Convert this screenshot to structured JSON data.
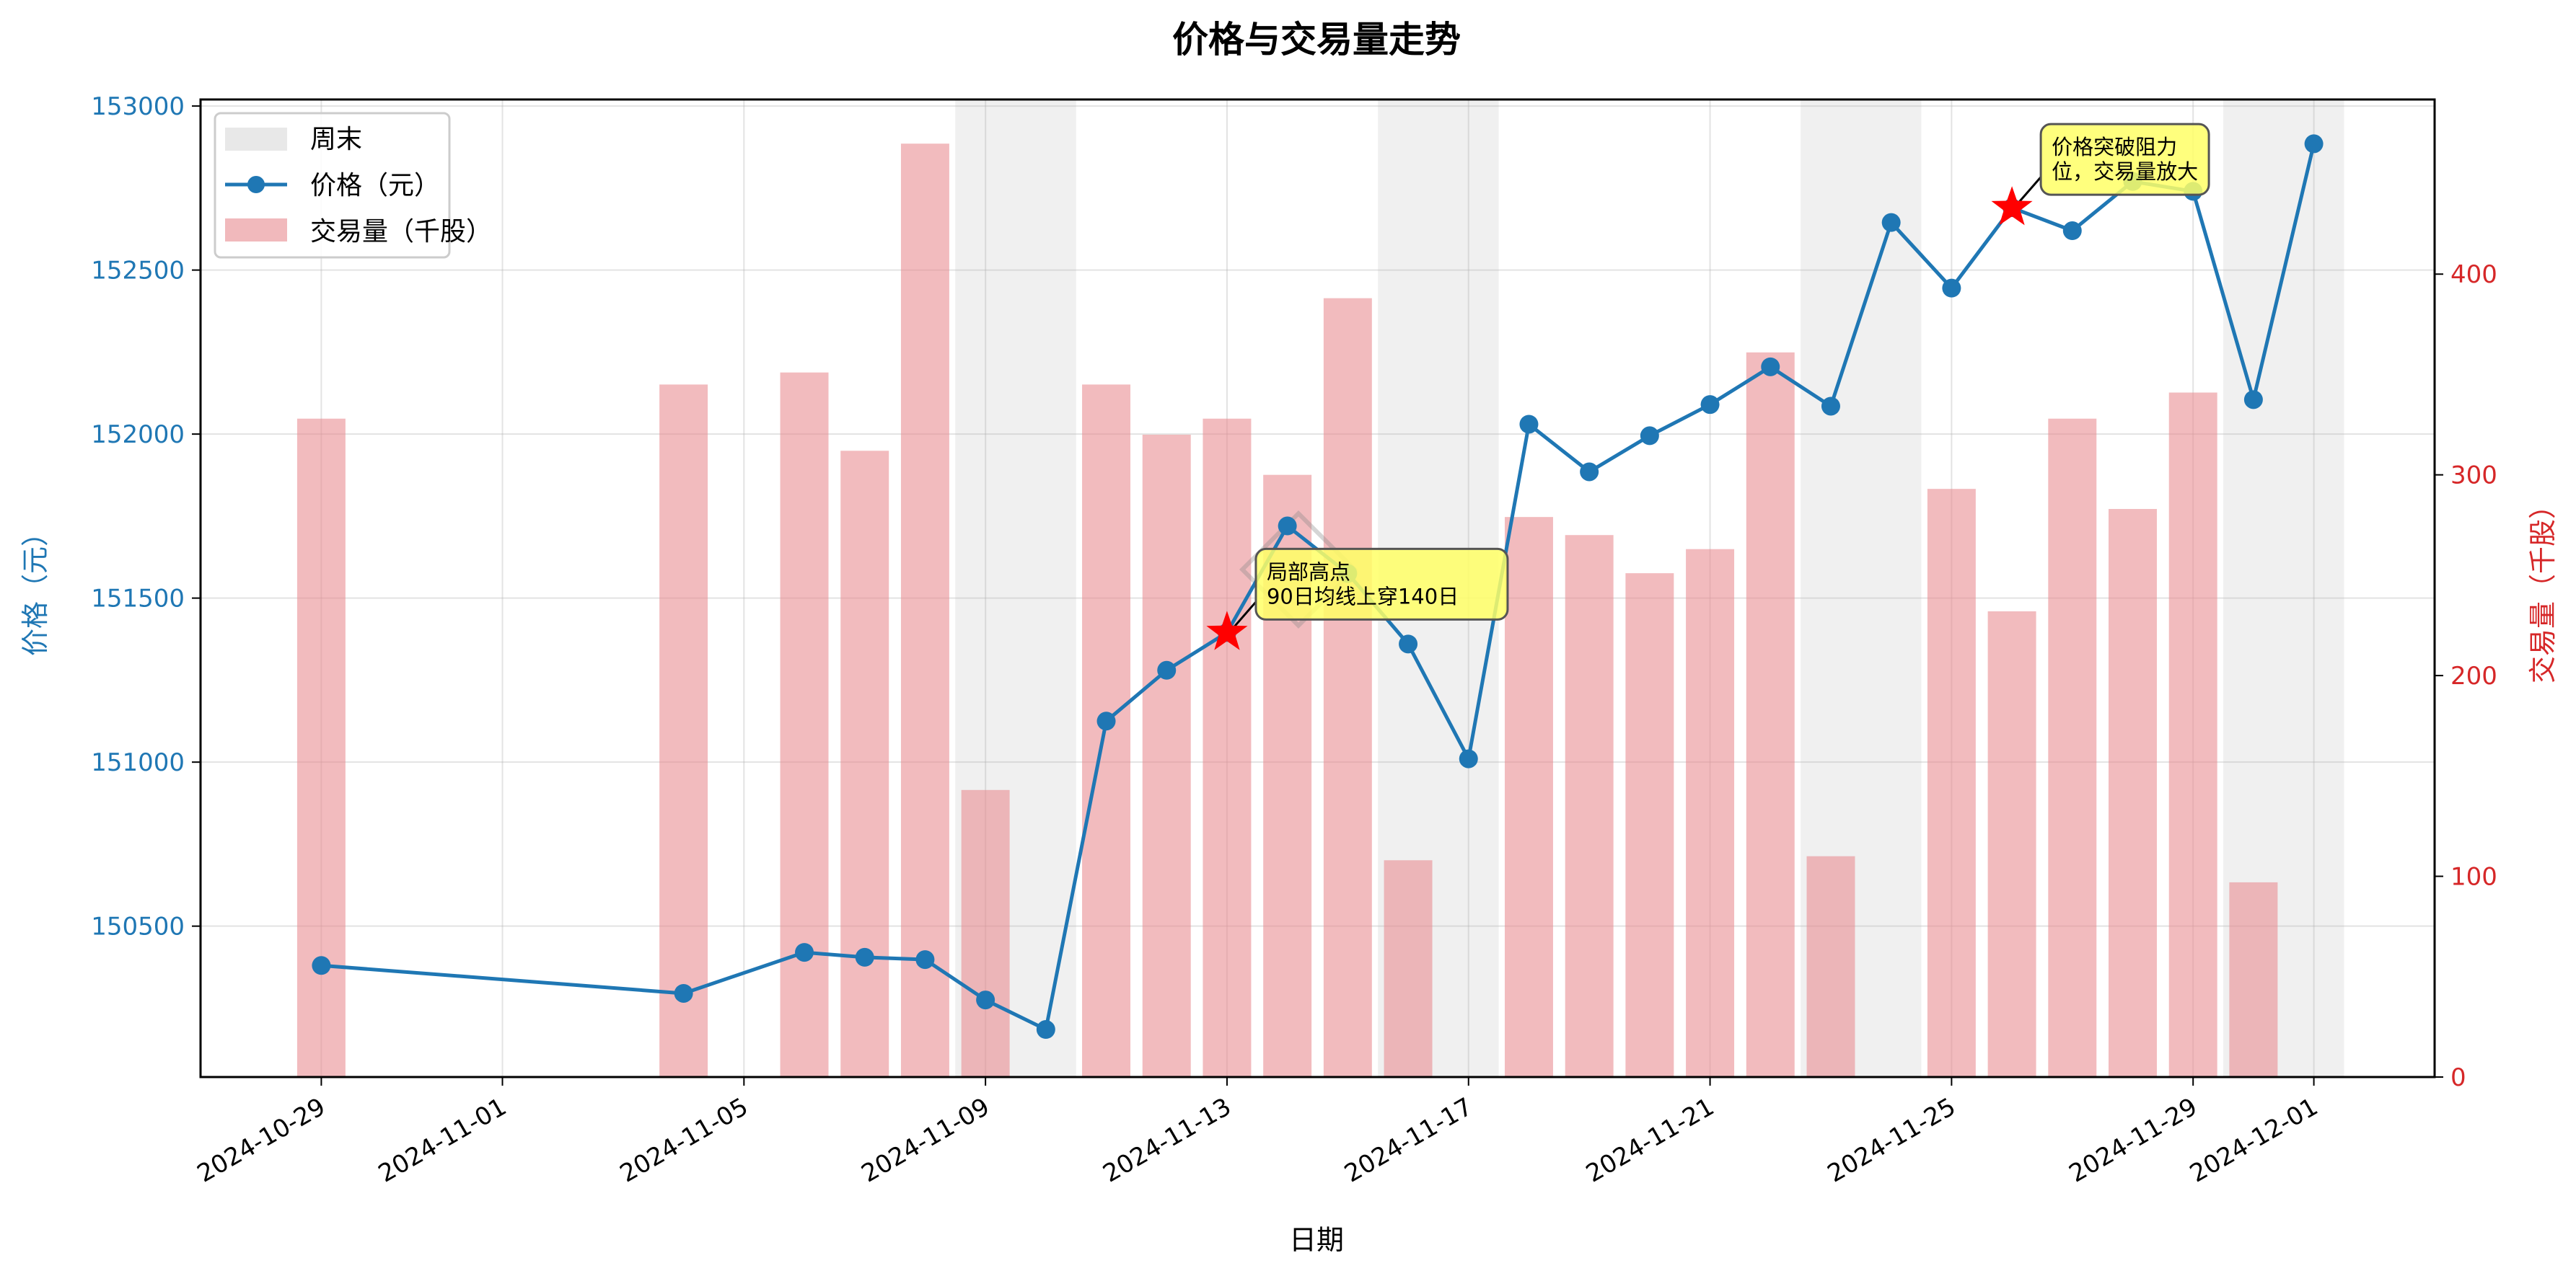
{
  "chart_data": {
    "type": "bar+line",
    "title": "价格与交易量走势",
    "xlabel": "日期",
    "ylabel_left": "价格（元）",
    "ylabel_right": "交易量（千股）",
    "x_tick_labels": [
      "2024-10-29",
      "2024-11-01",
      "2024-11-05",
      "2024-11-09",
      "2024-11-13",
      "2024-11-17",
      "2024-11-21",
      "2024-11-25",
      "2024-11-29",
      "2024-12-01"
    ],
    "y_left_ticks": [
      "150500",
      "151000",
      "151500",
      "152000",
      "152500",
      "153000"
    ],
    "y_right_ticks": [
      "0",
      "100",
      "200",
      "300",
      "400"
    ],
    "ylim_left": [
      150040,
      153020
    ],
    "ylim_right": [
      0,
      487
    ],
    "xlim": [
      "2024-10-27",
      "2024-12-03"
    ],
    "legend": {
      "placement": "top-left",
      "items": [
        "周末",
        "价格（元）",
        "交易量（千股）"
      ]
    },
    "colors": {
      "price": "#1f77b4",
      "volume": "#e88a8f",
      "weekend": "#d9d9d9",
      "annotation_box": "#ffff66",
      "marker": "#ff0000",
      "left_axis": "#1f77b4",
      "right_axis": "#d62728"
    },
    "grid": true,
    "weekend_spans": [
      [
        "2024-11-08T12:00",
        "2024-11-10T12:00"
      ],
      [
        "2024-11-15T12:00",
        "2024-11-17T12:00"
      ],
      [
        "2024-11-22T12:00",
        "2024-11-24T12:00"
      ],
      [
        "2024-11-29T12:00",
        "2024-12-01T12:00"
      ]
    ],
    "series": [
      {
        "name": "价格（元）",
        "type": "line",
        "points": [
          [
            "2024-10-29",
            150380
          ],
          [
            "2024-11-04",
            150295
          ],
          [
            "2024-11-06",
            150420
          ],
          [
            "2024-11-07",
            150405
          ],
          [
            "2024-11-08",
            150398
          ],
          [
            "2024-11-09",
            150275
          ],
          [
            "2024-11-10",
            150185
          ],
          [
            "2024-11-11",
            151125
          ],
          [
            "2024-11-12",
            151280
          ],
          [
            "2024-11-13",
            151395
          ],
          [
            "2024-11-14",
            151720
          ],
          [
            "2024-11-15",
            151575
          ],
          [
            "2024-11-16",
            151360
          ],
          [
            "2024-11-17",
            151010
          ],
          [
            "2024-11-18",
            152030
          ],
          [
            "2024-11-19",
            151885
          ],
          [
            "2024-11-20",
            151995
          ],
          [
            "2024-11-21",
            152090
          ],
          [
            "2024-11-22",
            152205
          ],
          [
            "2024-11-23",
            152085
          ],
          [
            "2024-11-24",
            152645
          ],
          [
            "2024-11-25",
            152445
          ],
          [
            "2024-11-26",
            152690
          ],
          [
            "2024-11-27",
            152620
          ],
          [
            "2024-11-28",
            152770
          ],
          [
            "2024-11-29",
            152740
          ],
          [
            "2024-11-30",
            152105
          ],
          [
            "2024-12-01",
            152885
          ]
        ]
      },
      {
        "name": "交易量（千股）",
        "type": "bar",
        "points": [
          [
            "2024-10-29",
            328
          ],
          [
            "2024-11-04",
            345
          ],
          [
            "2024-11-06",
            351
          ],
          [
            "2024-11-07",
            312
          ],
          [
            "2024-11-08",
            465
          ],
          [
            "2024-11-09",
            143
          ],
          [
            "2024-11-11",
            345
          ],
          [
            "2024-11-12",
            320
          ],
          [
            "2024-11-13",
            328
          ],
          [
            "2024-11-14",
            300
          ],
          [
            "2024-11-15",
            388
          ],
          [
            "2024-11-16",
            108
          ],
          [
            "2024-11-18",
            279
          ],
          [
            "2024-11-19",
            270
          ],
          [
            "2024-11-20",
            251
          ],
          [
            "2024-11-21",
            263
          ],
          [
            "2024-11-22",
            361
          ],
          [
            "2024-11-23",
            110
          ],
          [
            "2024-11-25",
            293
          ],
          [
            "2024-11-26",
            232
          ],
          [
            "2024-11-27",
            328
          ],
          [
            "2024-11-28",
            283
          ],
          [
            "2024-11-29",
            341
          ],
          [
            "2024-11-30",
            97
          ]
        ]
      }
    ],
    "annotations": [
      {
        "x": "2024-11-13",
        "y": 151395,
        "label_lines": [
          "局部高点",
          "90日均线上穿140日"
        ]
      },
      {
        "x": "2024-11-26",
        "y": 152690,
        "label_lines": [
          "价格突破阻力",
          "位，交易量放大"
        ]
      }
    ]
  }
}
